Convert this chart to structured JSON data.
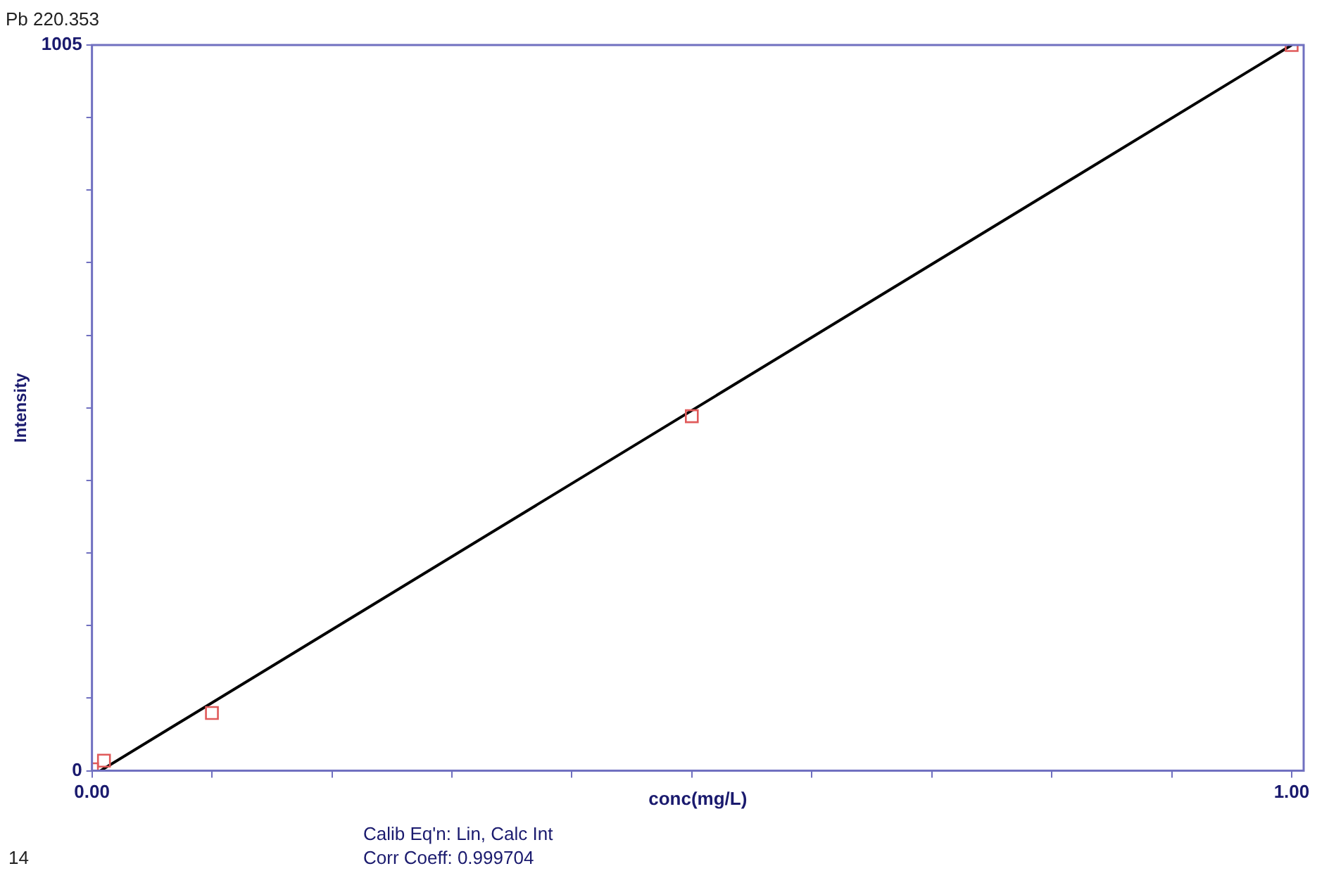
{
  "chart_data": {
    "type": "scatter",
    "title": "Pb 220.353",
    "xlabel": "conc(mg/L)",
    "ylabel": "Intensity",
    "xlim": [
      0,
      1.01
    ],
    "ylim": [
      0,
      1005
    ],
    "xticks": [
      {
        "value": 0,
        "label": "0.00"
      },
      {
        "value": 0.1,
        "label": null
      },
      {
        "value": 0.2,
        "label": null
      },
      {
        "value": 0.3,
        "label": null
      },
      {
        "value": 0.4,
        "label": null
      },
      {
        "value": 0.5,
        "label": null
      },
      {
        "value": 0.6,
        "label": null
      },
      {
        "value": 0.7,
        "label": null
      },
      {
        "value": 0.8,
        "label": null
      },
      {
        "value": 0.9,
        "label": null
      },
      {
        "value": 1,
        "label": "1.00"
      }
    ],
    "yticks": [
      0,
      {
        "value": 100.5,
        "label": null
      },
      {
        "value": 201,
        "label": null
      },
      {
        "value": 301.5,
        "label": null
      },
      {
        "value": 402,
        "label": null
      },
      {
        "value": 502.5,
        "label": null
      },
      {
        "value": 603,
        "label": null
      },
      {
        "value": 703.5,
        "label": null
      },
      {
        "value": 804,
        "label": null
      },
      {
        "value": 904.5,
        "label": null
      },
      1005
    ],
    "grid": false,
    "legend": false,
    "series": [
      {
        "color": "#e05a5a",
        "marker": "square",
        "x": [
          0,
          0.01,
          0.1,
          0.5,
          1
        ],
        "values": [
          2,
          14,
          80,
          491,
          1005
        ]
      },
      {
        "type": "line",
        "color": "#000000",
        "marker": "none",
        "line_style": "solid",
        "x": [
          0.007,
          1
        ],
        "values": [
          0,
          1005
        ]
      }
    ],
    "annotations": [
      "Calib Eq'n: Lin, Calc Int",
      "Corr Coeff: 0.999704",
      "14"
    ]
  }
}
